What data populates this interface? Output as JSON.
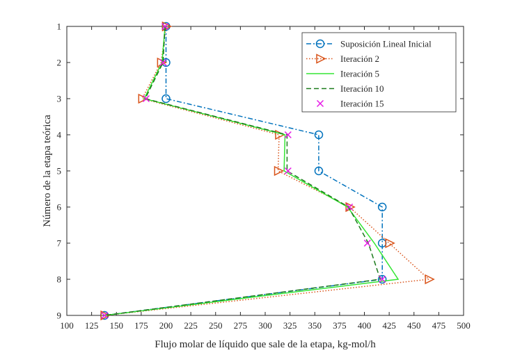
{
  "chart_data": {
    "type": "line",
    "xlabel": "Flujo molar de líquido que sale de la etapa, kg-mol/h",
    "ylabel": "Número de la etapa teórica",
    "xlim": [
      100,
      500
    ],
    "ylim": [
      1,
      9
    ],
    "y_reversed": true,
    "x_ticks": [
      100,
      125,
      150,
      175,
      200,
      225,
      250,
      275,
      300,
      325,
      350,
      375,
      400,
      425,
      450,
      475,
      500
    ],
    "y_ticks": [
      1,
      2,
      3,
      4,
      5,
      6,
      7,
      8,
      9
    ],
    "grid": false,
    "legend_position": "top-right",
    "series": [
      {
        "name": "Suposición Lineal Inicial",
        "style": "dashdot",
        "marker": "circle",
        "color": "#0072BD",
        "points": [
          [
            200,
            1
          ],
          [
            200,
            2
          ],
          [
            200,
            3
          ],
          [
            354,
            4
          ],
          [
            354,
            5
          ],
          [
            418,
            6
          ],
          [
            418,
            7
          ],
          [
            418,
            8
          ],
          [
            138,
            9
          ]
        ]
      },
      {
        "name": "Iteración 2",
        "style": "dotted",
        "marker": "triangle-right",
        "color": "#D95319",
        "points": [
          [
            200,
            1
          ],
          [
            195,
            2
          ],
          [
            176,
            3
          ],
          [
            314,
            4
          ],
          [
            313,
            5
          ],
          [
            385,
            6
          ],
          [
            425,
            7
          ],
          [
            465,
            8
          ],
          [
            138,
            9
          ]
        ]
      },
      {
        "name": "Iteración 5",
        "style": "solid",
        "marker": "none",
        "color": "#33E633",
        "points": [
          [
            199,
            1
          ],
          [
            196,
            2
          ],
          [
            178,
            3
          ],
          [
            320,
            4
          ],
          [
            319,
            5
          ],
          [
            383,
            6
          ],
          [
            410,
            7
          ],
          [
            434,
            8
          ],
          [
            138,
            9
          ]
        ]
      },
      {
        "name": "Iteración 10",
        "style": "dashed",
        "marker": "none",
        "color": "#1B7A1B",
        "points": [
          [
            199,
            1
          ],
          [
            197,
            2
          ],
          [
            179,
            3
          ],
          [
            322,
            4
          ],
          [
            322,
            5
          ],
          [
            384,
            6
          ],
          [
            404,
            7
          ],
          [
            416,
            8
          ],
          [
            138,
            9
          ]
        ]
      },
      {
        "name": "Iteración 15",
        "style": "none",
        "marker": "x",
        "color": "#E61AE6",
        "points": [
          [
            199,
            1
          ],
          [
            197,
            2
          ],
          [
            180,
            3
          ],
          [
            323,
            4
          ],
          [
            323,
            5
          ],
          [
            385,
            6
          ],
          [
            403,
            7
          ],
          [
            418,
            8
          ],
          [
            138,
            9
          ]
        ]
      }
    ]
  }
}
